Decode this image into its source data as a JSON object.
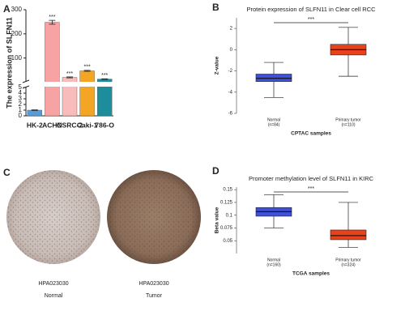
{
  "chart_data": [
    {
      "type": "bar",
      "panel": "A",
      "ylabel": "The expression of SLFN11",
      "categories": [
        "HK-2",
        "ACHN",
        "OSRC-2",
        "Caki-1",
        "786-O"
      ],
      "values": [
        1,
        248,
        20,
        47,
        13
      ],
      "errors": [
        0.05,
        8,
        2,
        2,
        1
      ],
      "value_annotations": [
        null,
        "***",
        "***",
        "***",
        "***"
      ],
      "colors": [
        "#5b9bd5",
        "#f7a3a3",
        "#f8bcbc",
        "#f5a524",
        "#1d8c9b"
      ],
      "ylim": [
        0,
        300
      ],
      "ybreak": 5,
      "yticks": [
        0,
        1,
        2,
        3,
        4,
        5,
        100,
        200,
        300
      ]
    },
    {
      "type": "box",
      "panel": "B",
      "title": "Protein expression of SLFN11 in Clear cell RCC",
      "ylabel": "Z-value",
      "xlabel": "CPTAC samples",
      "categories": [
        "Normal",
        "Primary tumor"
      ],
      "category_notes": [
        "(n=84)",
        "(n=110)"
      ],
      "boxes": [
        {
          "min": -4.5,
          "q1": -3.0,
          "median": -2.7,
          "q3": -2.3,
          "max": -1.2
        },
        {
          "min": -2.5,
          "q1": -0.5,
          "median": 0.0,
          "q3": 0.5,
          "max": 2.1
        }
      ],
      "colors": [
        "#3f51d9",
        "#e8421d"
      ],
      "annotation": "***",
      "ylim": [
        -6,
        3
      ],
      "yticks": [
        -6,
        -4,
        -2,
        0,
        2
      ]
    },
    {
      "type": "box",
      "panel": "D",
      "title": "Promoter methylation level of SLFN11 in KIRC",
      "ylabel": "Beta value",
      "xlabel": "TCGA samples",
      "categories": [
        "Normal",
        "Primary tumor"
      ],
      "category_notes": [
        "(n=160)",
        "(n=324)"
      ],
      "boxes": [
        {
          "min": 0.075,
          "q1": 0.098,
          "median": 0.107,
          "q3": 0.115,
          "max": 0.14
        },
        {
          "min": 0.037,
          "q1": 0.052,
          "median": 0.06,
          "q3": 0.071,
          "max": 0.125
        }
      ],
      "colors": [
        "#3f51d9",
        "#e8421d"
      ],
      "annotation": "***",
      "ylim": [
        0.025,
        0.155
      ],
      "yticks": [
        0.05,
        0.075,
        0.1,
        0.125,
        0.15
      ]
    }
  ],
  "panel_c": {
    "panel": "C",
    "images": [
      {
        "id": "HPA023030",
        "caption": "Normal"
      },
      {
        "id": "HPA023030",
        "caption": "Tumor"
      }
    ]
  }
}
